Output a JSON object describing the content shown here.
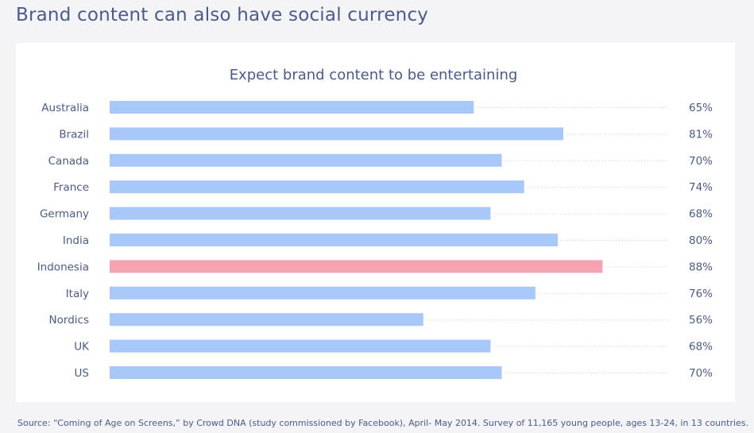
{
  "page": {
    "title": "Brand content can also have social currency",
    "source": "Source: “Coming of Age on Screens,” by Crowd DNA (study commissioned by Facebook), April- May 2014. Survey of 11,165 young people, ages 13-24, in 13 countries."
  },
  "colors": {
    "bar": "#a8c8fa",
    "highlight": "#f6a3b1",
    "dots": "#c8c8c8",
    "text": "#4a5a8c"
  },
  "chart_data": {
    "type": "bar",
    "orientation": "horizontal",
    "title": "Expect brand content to be entertaining",
    "categories": [
      "Australia",
      "Brazil",
      "Canada",
      "France",
      "Germany",
      "India",
      "Indonesia",
      "Italy",
      "Nordics",
      "UK",
      "US"
    ],
    "values": [
      65,
      81,
      70,
      74,
      68,
      80,
      88,
      76,
      56,
      68,
      70
    ],
    "value_labels": [
      "65%",
      "81%",
      "70%",
      "74%",
      "68%",
      "80%",
      "88%",
      "76%",
      "56%",
      "68%",
      "70%"
    ],
    "unit": "%",
    "highlight": "Indonesia",
    "xlim": [
      0,
      100
    ],
    "grid": false,
    "legend": "none"
  }
}
